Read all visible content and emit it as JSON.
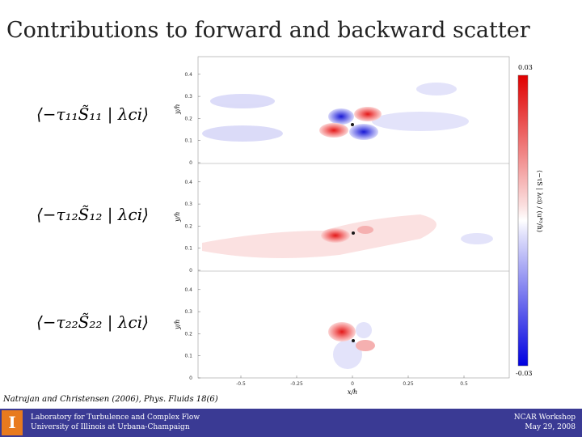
{
  "title": "Contributions to forward and backward scatter",
  "equations": [
    "⟨−τ₁₁S̃₁₁ | λci⟩",
    "⟨−τ₁₂S̃₁₂ | λci⟩",
    "⟨−τ₂₂S̃₂₂ | λci⟩"
  ],
  "panels": {
    "y_label": "y/h",
    "y_ticks": [
      "0",
      "0.1",
      "0.2",
      "0.3",
      "0.4"
    ],
    "x_label": "x/h",
    "x_ticks": [
      "-0.5",
      "-0.25",
      "0",
      "0.25",
      "0.5"
    ]
  },
  "colorbar": {
    "max_label": "0.03",
    "min_label": "-0.03",
    "label": "⟨−τS | λci⟩ / (u*³/h)"
  },
  "citation": "Natrajan and Christensen (2006), Phys. Fluids 18(6)",
  "footer": {
    "logo": "I",
    "lab": "Laboratory for Turbulence and Complex Flow",
    "university": "University of Illinois at Urbana-Champaign",
    "event": "NCAR Workshop",
    "date": "May 29, 2008"
  }
}
